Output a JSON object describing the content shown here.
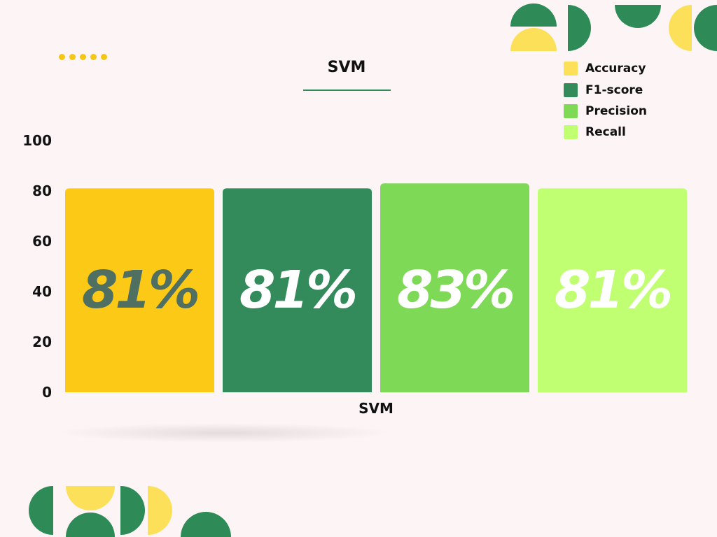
{
  "chart_data": {
    "type": "bar",
    "title": "SVM",
    "xlabel": "SVM",
    "ylabel": "",
    "ylim": [
      0,
      100
    ],
    "yticks": [
      0,
      20,
      40,
      60,
      80,
      100
    ],
    "grid": false,
    "legend_position": "top-right",
    "categories": [
      "SVM"
    ],
    "series": [
      {
        "name": "Accuracy",
        "values": [
          81
        ],
        "label": "81%",
        "color": "#fcc917",
        "label_color": "#4f6f62"
      },
      {
        "name": "F1-score",
        "values": [
          81
        ],
        "label": "81%",
        "color": "#338a5a",
        "label_color": "#ffffff"
      },
      {
        "name": "Precision",
        "values": [
          83
        ],
        "label": "83%",
        "color": "#7ed957",
        "label_color": "#ffffff"
      },
      {
        "name": "Recall",
        "values": [
          81
        ],
        "label": "81%",
        "color": "#c1ff72",
        "label_color": "#ffffff"
      }
    ]
  },
  "legend_colors": [
    "#fde05a",
    "#338a5a",
    "#7ed957",
    "#c1ff72"
  ],
  "decor_colors": {
    "green": "#2e8b57",
    "yellow": "#fde05a",
    "dots": "#f5c518"
  }
}
